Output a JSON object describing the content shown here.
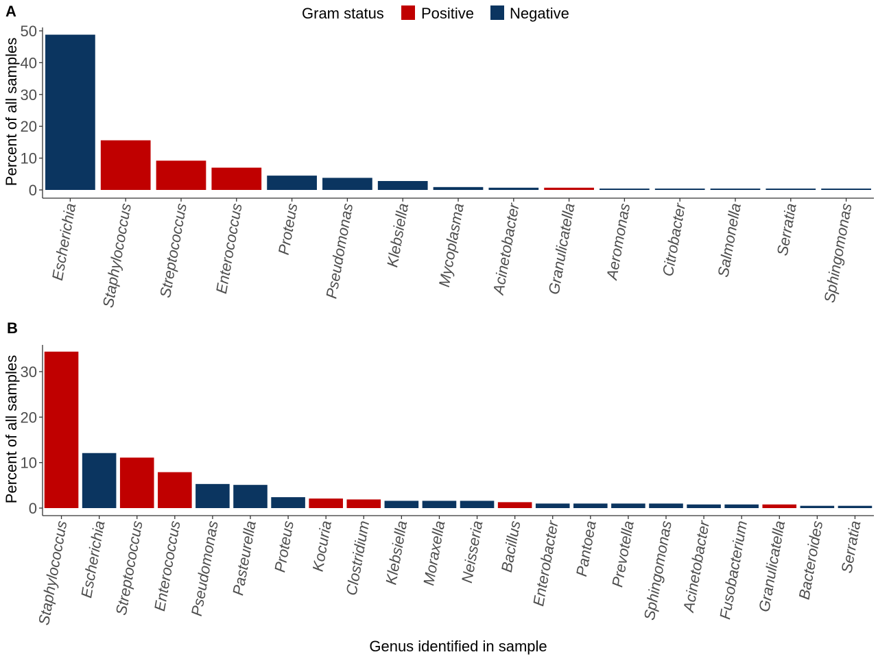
{
  "legend": {
    "title": "Gram status",
    "items": [
      {
        "label": "Positive",
        "color": "#c00000"
      },
      {
        "label": "Negative",
        "color": "#0b3560"
      }
    ]
  },
  "colors": {
    "Positive": "#c00000",
    "Negative": "#0b3560",
    "axis": "#333333",
    "tick_text": "#4d4d4d"
  },
  "xlabel": "Genus identified in sample",
  "chart_data": [
    {
      "type": "bar",
      "panel": "A",
      "ylabel": "Percent of all samples",
      "ylim": [
        0,
        50
      ],
      "yticks": [
        0,
        10,
        20,
        30,
        40,
        50
      ],
      "grid": false,
      "categories": [
        "Escherichia",
        "Staphylococcus",
        "Streptococcus",
        "Enterococcus",
        "Proteus",
        "Pseudomonas",
        "Klebsiella",
        "Mycoplasma",
        "Acinetobacter",
        "Granulicatella",
        "Aeromonas",
        "Citrobacter",
        "Salmonella",
        "Serratia",
        "Sphingomonas"
      ],
      "values": [
        48.8,
        15.6,
        9.2,
        7.0,
        4.5,
        3.8,
        2.8,
        0.9,
        0.7,
        0.7,
        0.4,
        0.4,
        0.4,
        0.4,
        0.4
      ],
      "gram": [
        "Negative",
        "Positive",
        "Positive",
        "Positive",
        "Negative",
        "Negative",
        "Negative",
        "Negative",
        "Negative",
        "Positive",
        "Negative",
        "Negative",
        "Negative",
        "Negative",
        "Negative"
      ]
    },
    {
      "type": "bar",
      "panel": "B",
      "ylabel": "Percent of all samples",
      "ylim": [
        0,
        35
      ],
      "yticks": [
        0,
        10,
        20,
        30
      ],
      "grid": false,
      "categories": [
        "Staphylococcus",
        "Escherichia",
        "Streptococcus",
        "Enterococcus",
        "Pseudomonas",
        "Pasteurella",
        "Proteus",
        "Kocuria",
        "Clostridium",
        "Klebsiella",
        "Moraxella",
        "Neisseria",
        "Bacillus",
        "Enterobacter",
        "Pantoea",
        "Prevotella",
        "Sphingomonas",
        "Acinetobacter",
        "Fusobacterium",
        "Granulicatella",
        "Bacteroides",
        "Serratia"
      ],
      "values": [
        34.4,
        12.1,
        11.1,
        7.9,
        5.3,
        5.1,
        2.4,
        2.1,
        1.9,
        1.6,
        1.6,
        1.6,
        1.3,
        1.0,
        1.0,
        1.0,
        1.0,
        0.8,
        0.8,
        0.8,
        0.5,
        0.5
      ],
      "gram": [
        "Positive",
        "Negative",
        "Positive",
        "Positive",
        "Negative",
        "Negative",
        "Negative",
        "Positive",
        "Positive",
        "Negative",
        "Negative",
        "Negative",
        "Positive",
        "Negative",
        "Negative",
        "Negative",
        "Negative",
        "Negative",
        "Negative",
        "Positive",
        "Negative",
        "Negative"
      ]
    }
  ]
}
